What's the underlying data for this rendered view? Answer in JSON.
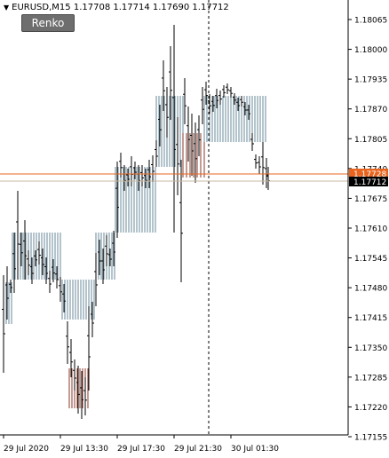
{
  "header": {
    "arrow_icon": "triangle-down",
    "symbol": "EURUSD,M15",
    "quotes": "1.17708 1.17714 1.17690 1.17712"
  },
  "renko_button": {
    "label": "Renko"
  },
  "price_axis": {
    "labels": [
      "1.18065",
      "1.18000",
      "1.17935",
      "1.17870",
      "1.17805",
      "1.17740",
      "1.17675",
      "1.17610",
      "1.17545",
      "1.17480",
      "1.17415",
      "1.17350",
      "1.17285",
      "1.17220",
      "1.17155"
    ],
    "current_price_tag": "1.17712",
    "ask_price_tag": "1.17728"
  },
  "time_axis": {
    "labels": [
      "29 Jul 2020",
      "29 Jul 13:30",
      "29 Jul 17:30",
      "29 Jul 21:30",
      "30 Jul 01:30"
    ]
  },
  "colors": {
    "background": "#ffffff",
    "bar": "#000000",
    "renko_brick": "#6a8a9a",
    "renko_brick_dark": "#8a3a2a",
    "ask_line": "#e8641e",
    "bid_line": "#c9b8a0",
    "price_tag_current": "#000000",
    "price_tag_ask": "#e8641e"
  }
}
